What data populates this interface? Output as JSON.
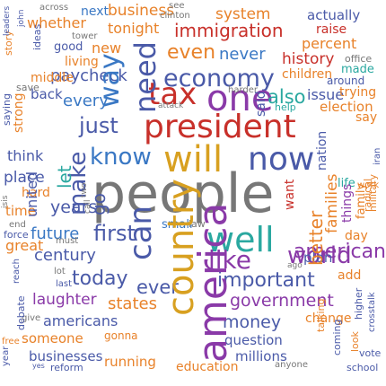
{
  "colors": {
    "orange": "#e8822a",
    "blue": "#3a78c4",
    "gray": "#777777",
    "navy": "#4a5aa8",
    "teal": "#2aa8a0",
    "green": "#5aa83a",
    "red": "#c8302a",
    "gold": "#d8a020",
    "purple": "#8a3aa8"
  },
  "words": [
    {
      "t": "across",
      "c": "gray"
    },
    {
      "t": "next",
      "c": "blue"
    },
    {
      "t": "business",
      "c": "orange"
    },
    {
      "t": "see",
      "c": "gray"
    },
    {
      "t": "clinton",
      "c": "gray"
    },
    {
      "t": "system",
      "c": "orange"
    },
    {
      "t": "actually",
      "c": "navy"
    },
    {
      "t": "whether",
      "c": "orange"
    },
    {
      "t": "tonight",
      "c": "orange"
    },
    {
      "t": "immigration",
      "c": "red"
    },
    {
      "t": "raise",
      "c": "red"
    },
    {
      "t": "percent",
      "c": "orange"
    },
    {
      "t": "tower",
      "c": "gray"
    },
    {
      "t": "good",
      "c": "navy"
    },
    {
      "t": "new",
      "c": "orange"
    },
    {
      "t": "even",
      "c": "orange"
    },
    {
      "t": "never",
      "c": "blue"
    },
    {
      "t": "history",
      "c": "red"
    },
    {
      "t": "office",
      "c": "gray"
    },
    {
      "t": "made",
      "c": "teal"
    },
    {
      "t": "children",
      "c": "orange"
    },
    {
      "t": "around",
      "c": "navy"
    },
    {
      "t": "living",
      "c": "orange"
    },
    {
      "t": "paycheck",
      "c": "navy"
    },
    {
      "t": "economy",
      "c": "navy"
    },
    {
      "t": "middle",
      "c": "orange"
    },
    {
      "t": "save",
      "c": "gray"
    },
    {
      "t": "back",
      "c": "navy"
    },
    {
      "t": "every",
      "c": "blue"
    },
    {
      "t": "tax",
      "c": "red"
    },
    {
      "t": "one",
      "c": "purple"
    },
    {
      "t": "also",
      "c": "teal"
    },
    {
      "t": "issue",
      "c": "navy"
    },
    {
      "t": "trying",
      "c": "orange"
    },
    {
      "t": "harder",
      "c": "gray"
    },
    {
      "t": "help",
      "c": "teal"
    },
    {
      "t": "election",
      "c": "orange"
    },
    {
      "t": "say",
      "c": "orange"
    },
    {
      "t": "attack",
      "c": "gray"
    },
    {
      "t": "just",
      "c": "navy"
    },
    {
      "t": "president",
      "c": "red"
    },
    {
      "t": "think",
      "c": "navy"
    },
    {
      "t": "know",
      "c": "blue"
    },
    {
      "t": "will",
      "c": "gold"
    },
    {
      "t": "now",
      "c": "navy"
    },
    {
      "t": "place",
      "c": "navy"
    },
    {
      "t": "hard",
      "c": "orange"
    },
    {
      "t": "people",
      "c": "gray"
    },
    {
      "t": "time",
      "c": "orange"
    },
    {
      "t": "years",
      "c": "navy"
    },
    {
      "t": "life",
      "c": "teal"
    },
    {
      "t": "work",
      "c": "orange"
    },
    {
      "t": "end",
      "c": "gray"
    },
    {
      "t": "force",
      "c": "navy"
    },
    {
      "t": "future",
      "c": "blue"
    },
    {
      "t": "first",
      "c": "navy"
    },
    {
      "t": "small",
      "c": "blue"
    },
    {
      "t": "law",
      "c": "gray"
    },
    {
      "t": "well",
      "c": "teal"
    },
    {
      "t": "world",
      "c": "purple"
    },
    {
      "t": "american",
      "c": "purple"
    },
    {
      "t": "day",
      "c": "orange"
    },
    {
      "t": "great",
      "c": "orange"
    },
    {
      "t": "must",
      "c": "gray"
    },
    {
      "t": "century",
      "c": "navy"
    },
    {
      "t": "like",
      "c": "purple"
    },
    {
      "t": "plan",
      "c": "navy"
    },
    {
      "t": "ago",
      "c": "gray"
    },
    {
      "t": "today",
      "c": "navy"
    },
    {
      "t": "lot",
      "c": "gray"
    },
    {
      "t": "last",
      "c": "navy"
    },
    {
      "t": "ever",
      "c": "navy"
    },
    {
      "t": "important",
      "c": "navy"
    },
    {
      "t": "add",
      "c": "orange"
    },
    {
      "t": "laughter",
      "c": "purple"
    },
    {
      "t": "states",
      "c": "orange"
    },
    {
      "t": "government",
      "c": "purple"
    },
    {
      "t": "give",
      "c": "gray"
    },
    {
      "t": "americans",
      "c": "navy"
    },
    {
      "t": "money",
      "c": "navy"
    },
    {
      "t": "change",
      "c": "orange"
    },
    {
      "t": "free",
      "c": "orange"
    },
    {
      "t": "someone",
      "c": "orange"
    },
    {
      "t": "gonna",
      "c": "orange"
    },
    {
      "t": "question",
      "c": "navy"
    },
    {
      "t": "vote",
      "c": "navy"
    },
    {
      "t": "businesses",
      "c": "navy"
    },
    {
      "t": "running",
      "c": "orange"
    },
    {
      "t": "millions",
      "c": "navy"
    },
    {
      "t": "yes",
      "c": "navy"
    },
    {
      "t": "reform",
      "c": "navy"
    },
    {
      "t": "education",
      "c": "orange"
    },
    {
      "t": "anyone",
      "c": "gray"
    },
    {
      "t": "school",
      "c": "navy"
    },
    {
      "t": "can",
      "c": "navy"
    },
    {
      "t": "need",
      "c": "navy"
    },
    {
      "t": "want",
      "c": "red"
    },
    {
      "t": "country",
      "c": "gold"
    },
    {
      "t": "america",
      "c": "purple"
    },
    {
      "t": "make",
      "c": "navy"
    },
    {
      "t": "united",
      "c": "navy"
    },
    {
      "t": "said",
      "c": "navy"
    },
    {
      "t": "let",
      "c": "teal"
    },
    {
      "t": "go",
      "c": "navy"
    },
    {
      "t": "way",
      "c": "blue"
    },
    {
      "t": "better",
      "c": "orange"
    },
    {
      "t": "families",
      "c": "orange"
    },
    {
      "t": "things",
      "c": "purple"
    },
    {
      "t": "nation",
      "c": "navy"
    },
    {
      "t": "family",
      "c": "orange"
    },
    {
      "t": "military",
      "c": "orange"
    },
    {
      "t": "strong",
      "c": "orange"
    },
    {
      "t": "ideas",
      "c": "navy"
    },
    {
      "t": "saying",
      "c": "navy"
    },
    {
      "t": "story",
      "c": "orange"
    },
    {
      "t": "leaders",
      "c": "navy"
    },
    {
      "t": "john",
      "c": "navy"
    },
    {
      "t": "isis",
      "c": "gray"
    },
    {
      "t": "two",
      "c": "gray"
    },
    {
      "t": "call",
      "c": "gray"
    },
    {
      "t": "debate",
      "c": "navy"
    },
    {
      "t": "reach",
      "c": "navy"
    },
    {
      "t": "year",
      "c": "navy"
    },
    {
      "t": "higher",
      "c": "navy"
    },
    {
      "t": "crosstalk",
      "c": "navy"
    },
    {
      "t": "talking",
      "c": "orange"
    },
    {
      "t": "radical",
      "c": "orange"
    },
    {
      "t": "iran",
      "c": "navy"
    },
    {
      "t": "look",
      "c": "orange"
    },
    {
      "t": "coming",
      "c": "navy"
    }
  ]
}
